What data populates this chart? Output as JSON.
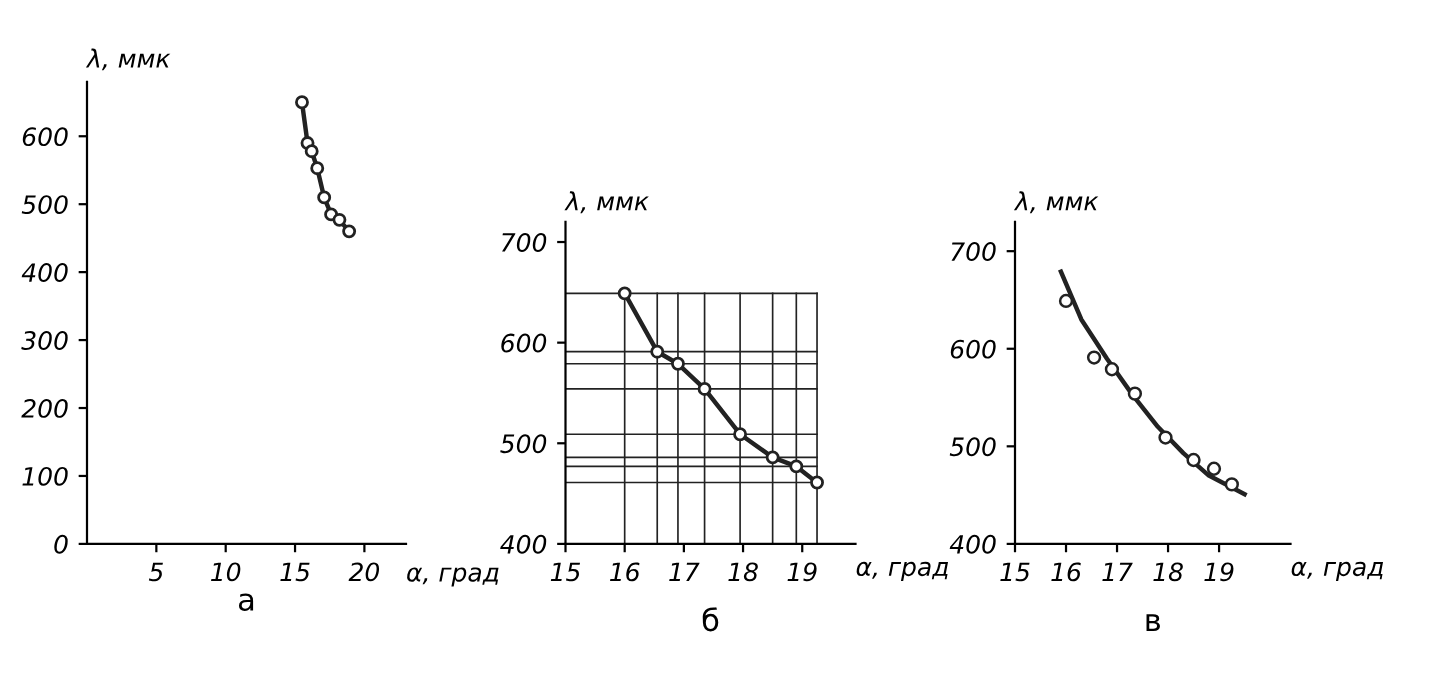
{
  "chart_data": [
    {
      "type": "line",
      "title": "а",
      "xlabel": "α, град",
      "ylabel": "λ, ммк",
      "xlim": [
        0,
        23
      ],
      "ylim": [
        0,
        680
      ],
      "xticks": [
        5,
        10,
        15,
        20
      ],
      "yticks": [
        0,
        100,
        200,
        300,
        400,
        500,
        600
      ],
      "grid": false,
      "legend": false,
      "series": [
        {
          "color": "#222222",
          "marker": "circle",
          "x": [
            15.5,
            15.9,
            16.2,
            16.6,
            17.1,
            17.6,
            18.2,
            18.9
          ],
          "values": [
            650,
            590,
            578,
            553,
            510,
            485,
            477,
            460
          ]
        }
      ]
    },
    {
      "type": "line",
      "title": "б",
      "xlabel": "α, град",
      "ylabel": "λ, ммк",
      "xlim": [
        15,
        19.9
      ],
      "ylim": [
        400,
        720
      ],
      "xticks": [
        15,
        16,
        17,
        18,
        19
      ],
      "yticks": [
        400,
        500,
        600,
        700
      ],
      "grid": false,
      "legend": false,
      "series": [
        {
          "color": "#222222",
          "marker": "circle",
          "x": [
            16.0,
            16.55,
            16.9,
            17.35,
            17.95,
            18.5,
            18.9,
            19.25
          ],
          "values": [
            649,
            591,
            579,
            554,
            509,
            486,
            477,
            461
          ]
        }
      ],
      "ref_lines": [
        {
          "axis": "x",
          "value": 16.0
        },
        {
          "axis": "x",
          "value": 16.55
        },
        {
          "axis": "x",
          "value": 16.9
        },
        {
          "axis": "x",
          "value": 17.35
        },
        {
          "axis": "x",
          "value": 17.95
        },
        {
          "axis": "x",
          "value": 18.5
        },
        {
          "axis": "x",
          "value": 18.9
        },
        {
          "axis": "x",
          "value": 19.25
        },
        {
          "axis": "y",
          "value": 649
        },
        {
          "axis": "y",
          "value": 591
        },
        {
          "axis": "y",
          "value": 579
        },
        {
          "axis": "y",
          "value": 554
        },
        {
          "axis": "y",
          "value": 509
        },
        {
          "axis": "y",
          "value": 486
        },
        {
          "axis": "y",
          "value": 477
        },
        {
          "axis": "y",
          "value": 461
        }
      ]
    },
    {
      "type": "scatter",
      "title": "в",
      "xlabel": "α, град",
      "ylabel": "λ, ммк",
      "xlim": [
        15,
        20.4
      ],
      "ylim": [
        400,
        730
      ],
      "xticks": [
        15,
        16,
        17,
        18,
        19
      ],
      "yticks": [
        400,
        500,
        600,
        700
      ],
      "grid": false,
      "legend": false,
      "series": [
        {
          "color": "#222222",
          "marker": "circle",
          "x": [
            16.0,
            16.55,
            16.9,
            17.35,
            17.95,
            18.5,
            18.9,
            19.25
          ],
          "values": [
            649,
            591,
            579,
            554,
            509,
            486,
            477,
            461
          ]
        },
        {
          "type": "line",
          "color": "#222222",
          "marker": "none",
          "x": [
            15.9,
            16.3,
            16.8,
            17.3,
            17.8,
            18.3,
            18.8,
            19.5
          ],
          "values": [
            679,
            630,
            590,
            553,
            520,
            493,
            470,
            451
          ]
        }
      ]
    }
  ]
}
